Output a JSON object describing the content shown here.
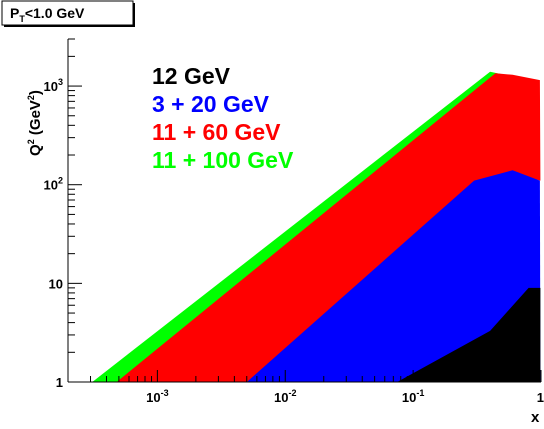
{
  "chart_data": {
    "type": "area",
    "title": "P_T<1.0 GeV",
    "title_parts": {
      "main": "P",
      "sub": "T",
      "rest": "<1.0 GeV"
    },
    "xlabel": "x",
    "ylabel_parts": {
      "q": "Q",
      "q_sup": "2",
      "unit_open": " (GeV",
      "unit_sup": "2",
      "unit_close": ")"
    },
    "x_scale": "log",
    "y_scale": "log",
    "xlim": [
      0.0002,
      1.0
    ],
    "ylim": [
      1,
      3000
    ],
    "grid": false,
    "legend_position": "top-left",
    "x_ticks": [
      {
        "value": 0.001,
        "base": "10",
        "exp": "-3"
      },
      {
        "value": 0.01,
        "base": "10",
        "exp": "-2"
      },
      {
        "value": 0.1,
        "base": "10",
        "exp": "-1"
      },
      {
        "value": 1,
        "base": "1",
        "exp": ""
      }
    ],
    "y_ticks": [
      {
        "value": 1,
        "base": "1",
        "exp": ""
      },
      {
        "value": 10,
        "base": "10",
        "exp": ""
      },
      {
        "value": 100,
        "base": "10",
        "exp": "2"
      },
      {
        "value": 1000,
        "base": "10",
        "exp": "3"
      }
    ],
    "series": [
      {
        "name": "11 + 100 GeV",
        "color": "#00ff00",
        "polygon": [
          [
            0.00031,
            1
          ],
          [
            0.4,
            1400
          ],
          [
            0.6,
            1250
          ],
          [
            0.0005,
            1
          ]
        ]
      },
      {
        "name": "11 + 60 GeV",
        "color": "#ff0000",
        "polygon": [
          [
            0.00048,
            1
          ],
          [
            0.44,
            1350
          ],
          [
            0.6,
            1300
          ],
          [
            0.98,
            1150
          ],
          [
            0.99,
            110
          ],
          [
            0.75,
            120
          ],
          [
            0.005,
            1
          ]
        ]
      },
      {
        "name": "3 + 20 GeV",
        "color": "#0000ff",
        "polygon": [
          [
            0.005,
            1
          ],
          [
            0.3,
            110
          ],
          [
            0.6,
            140
          ],
          [
            0.98,
            110
          ],
          [
            0.99,
            1
          ],
          [
            0.075,
            1
          ]
        ]
      },
      {
        "name": "12 GeV",
        "color": "#000000",
        "polygon": [
          [
            0.075,
            1
          ],
          [
            0.4,
            3.3
          ],
          [
            0.8,
            9
          ],
          [
            0.99,
            9
          ],
          [
            0.99,
            1
          ]
        ]
      }
    ],
    "legend_order": [
      "12 GeV",
      "3 + 20 GeV",
      "11 + 60 GeV",
      "11 + 100 GeV"
    ]
  }
}
